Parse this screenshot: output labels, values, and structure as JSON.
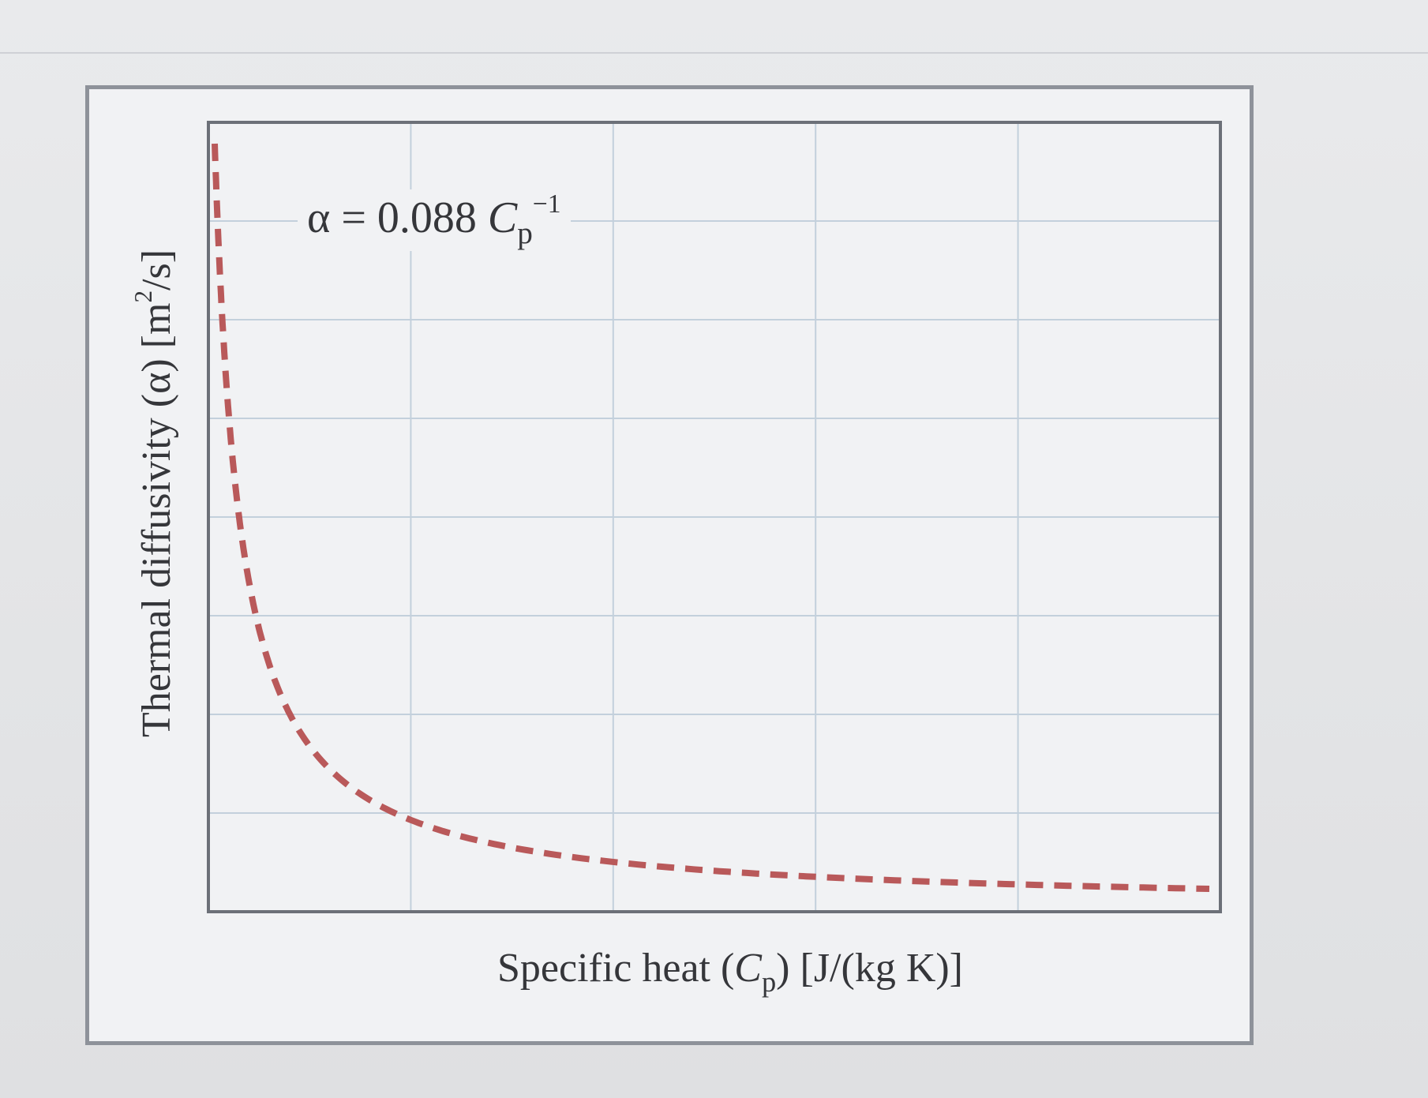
{
  "chart_data": {
    "type": "line",
    "ylabel": {
      "prefix": "Thermal diffusivity (α) [m",
      "sup": "2",
      "suffix": "/s]"
    },
    "xlabel": {
      "prefix": "Specific heat (",
      "var": "C",
      "sub": "p",
      "suffix": ") [J/(kg K)]"
    },
    "annotation": {
      "lhs": "α = 0.088 ",
      "var": "C",
      "sub": "p",
      "sup": "−1"
    },
    "grid": true,
    "series": [
      {
        "coefficient": 0.088,
        "exponent": -1,
        "style": "dashed",
        "color": "#b9595a"
      }
    ],
    "colors": {
      "grid": "#c3d0dc",
      "axes": "#6c7078",
      "text": "#35363a"
    }
  }
}
